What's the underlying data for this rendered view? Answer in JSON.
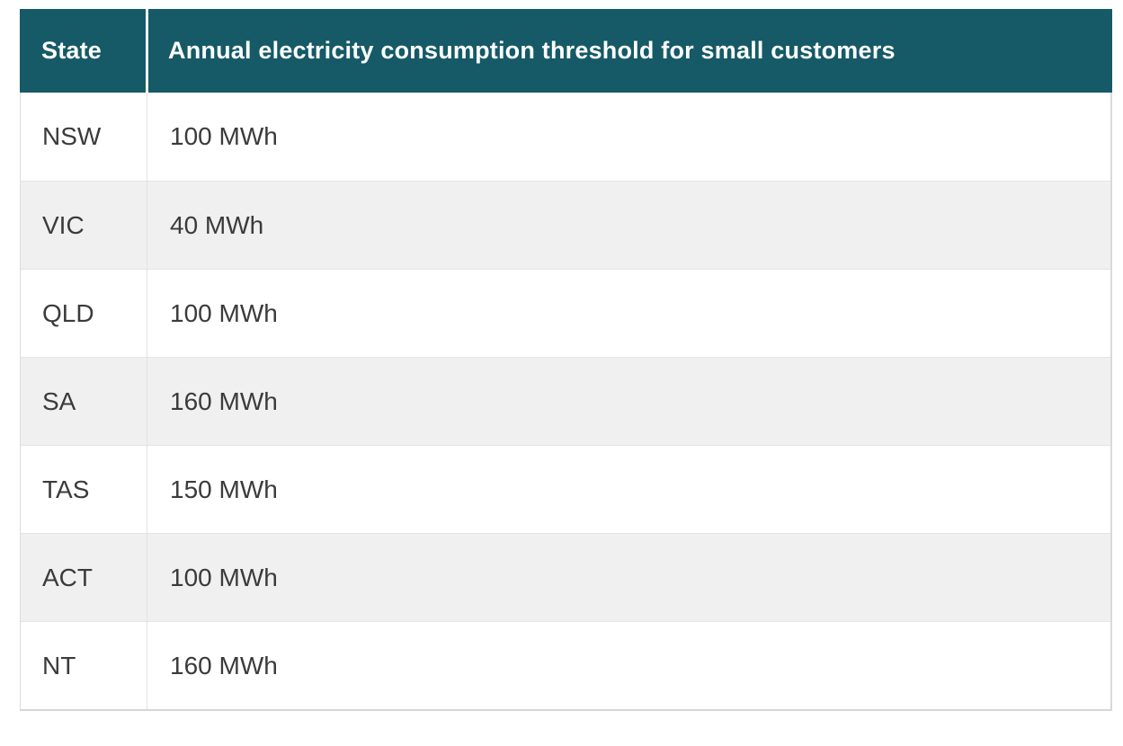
{
  "table": {
    "columns": [
      {
        "label": "State"
      },
      {
        "label": "Annual electricity consumption threshold for small customers"
      }
    ],
    "rows": [
      {
        "state": "NSW",
        "threshold": "100 MWh"
      },
      {
        "state": "VIC",
        "threshold": "40 MWh"
      },
      {
        "state": "QLD",
        "threshold": "100 MWh"
      },
      {
        "state": "SA",
        "threshold": "160 MWh"
      },
      {
        "state": "TAS",
        "threshold": "150 MWh"
      },
      {
        "state": "ACT",
        "threshold": "100 MWh"
      },
      {
        "state": "NT",
        "threshold": "160 MWh"
      }
    ],
    "colors": {
      "header_bg": "#155a66",
      "header_text": "#ffffff",
      "row_bg": "#ffffff",
      "row_alt_bg": "#f0f0f0",
      "border": "#dcdcdc",
      "body_text": "#3b3b3b"
    }
  }
}
